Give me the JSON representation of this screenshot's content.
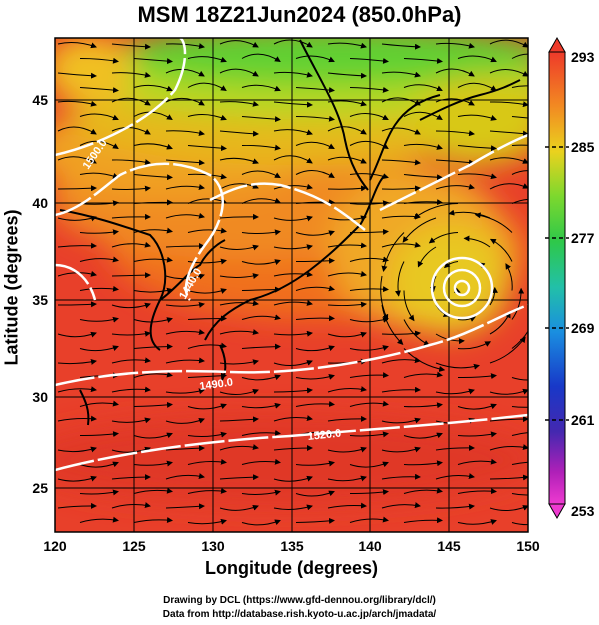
{
  "title": "MSM 18Z21Jun2024 (850.0hPa)",
  "xaxis": {
    "label": "Longitude (degrees)",
    "ticks": [
      "120",
      "125",
      "130",
      "135",
      "140",
      "145",
      "150"
    ]
  },
  "yaxis": {
    "label": "Latitude  (degrees)",
    "ticks": [
      "25",
      "30",
      "35",
      "40",
      "45"
    ]
  },
  "colorbar": {
    "labels": [
      "293",
      "285",
      "277",
      "269",
      "261",
      "253"
    ]
  },
  "contours": [
    {
      "label": "1500.0"
    },
    {
      "label": "1440.0"
    },
    {
      "label": "1490.0"
    },
    {
      "label": "1520.0"
    }
  ],
  "credits": {
    "line1": "Drawing by DCL (https://www.gfd-dennou.org/library/dcl/)",
    "line2": "Data from http://database.rish.kyoto-u.ac.jp/arch/jmadata/"
  },
  "colors": {
    "warm": "#e8402a",
    "orange": "#f08820",
    "yellow": "#d8d818",
    "green": "#50d040",
    "contour": "#ffffff"
  }
}
